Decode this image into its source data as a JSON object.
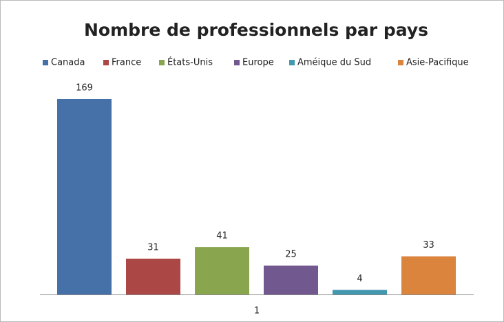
{
  "chart_data": {
    "type": "bar",
    "title": "Nombre de professionnels par pays",
    "categories": [
      "1"
    ],
    "series": [
      {
        "name": "Canada",
        "color": "#4571a8",
        "values": [
          169
        ]
      },
      {
        "name": "France",
        "color": "#ab4744",
        "values": [
          31
        ]
      },
      {
        "name": "États-Unis",
        "color": "#89a54e",
        "values": [
          41
        ]
      },
      {
        "name": "Europe",
        "color": "#71588f",
        "values": [
          25
        ]
      },
      {
        "name": "Améique du Sud",
        "color": "#4198af",
        "values": [
          4
        ]
      },
      {
        "name": "Asie-Pacifique",
        "color": "#db843d",
        "values": [
          33
        ]
      }
    ],
    "legend": "top"
  }
}
